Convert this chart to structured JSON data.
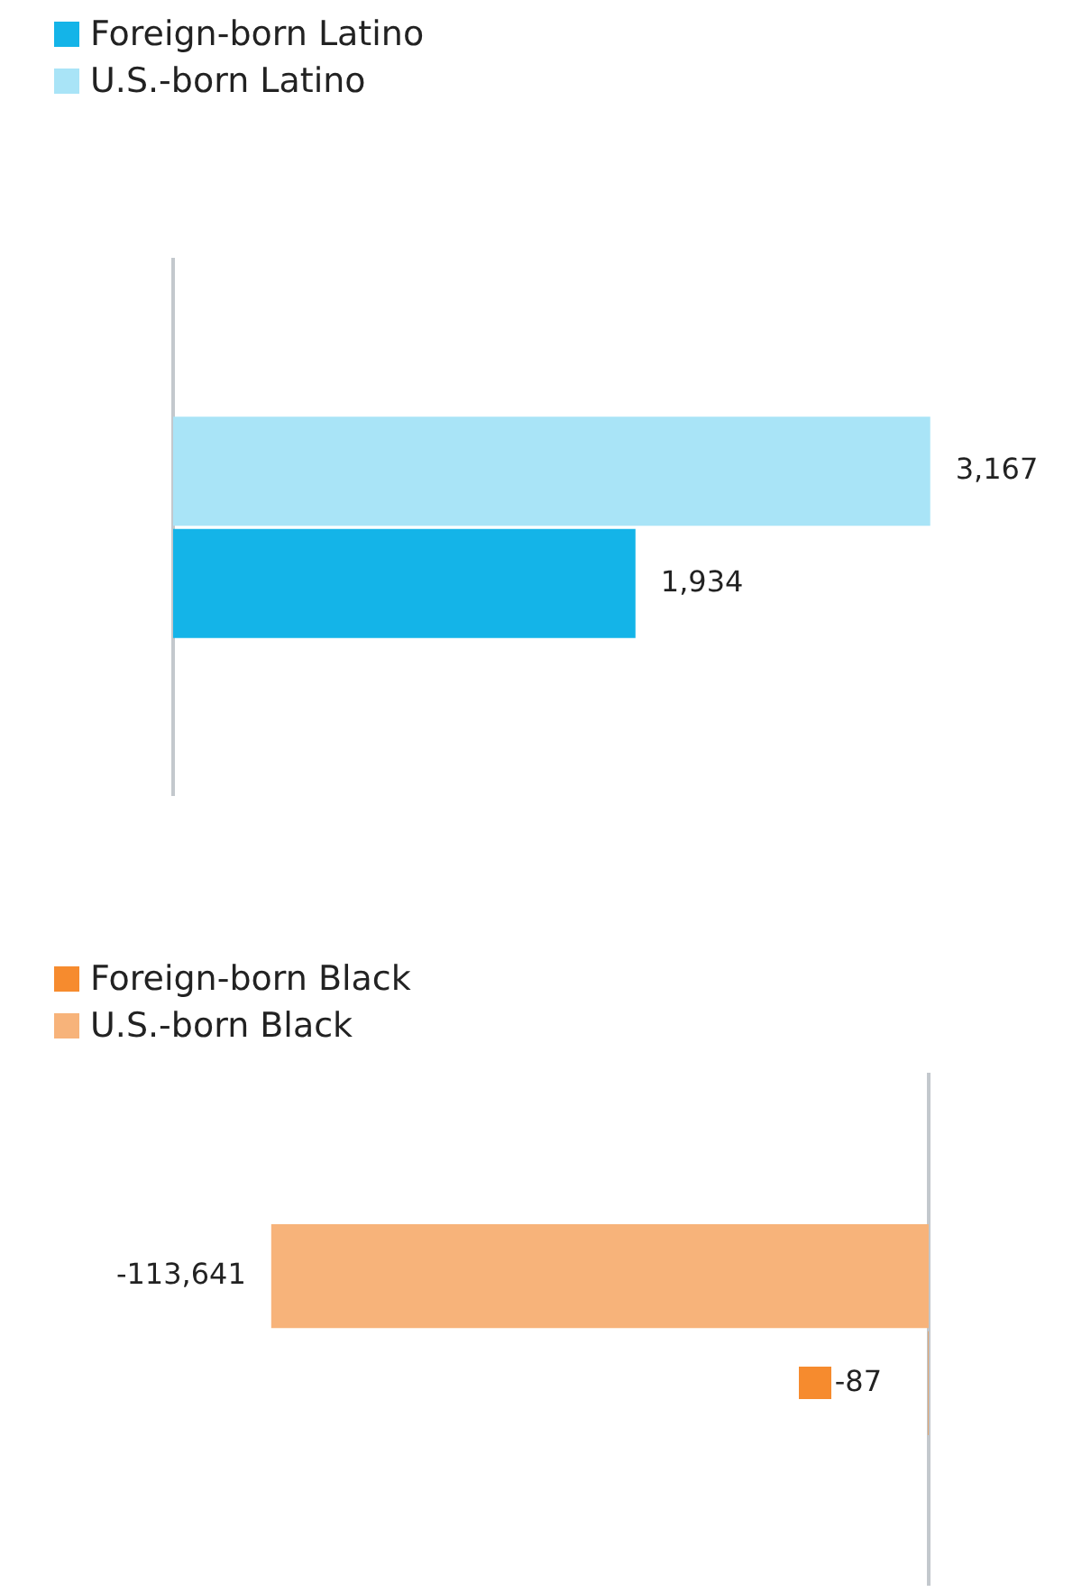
{
  "chart_data": [
    {
      "type": "bar",
      "orientation": "horizontal",
      "categories": [
        null
      ],
      "tick_labels": false,
      "grid": false,
      "legend": "top left",
      "series": [
        {
          "name": "U.S.-born Latino",
          "color": "#a9e4f7",
          "values": [
            3167
          ],
          "value_labels": [
            "3,167"
          ]
        },
        {
          "name": "Foreign-born Latino",
          "color": "#14b4e8",
          "values": [
            1934
          ],
          "value_labels": [
            "1,934"
          ]
        }
      ]
    },
    {
      "type": "bar",
      "orientation": "horizontal",
      "categories": [
        null
      ],
      "tick_labels": false,
      "grid": false,
      "legend": "top left",
      "series": [
        {
          "name": "U.S.-born Black",
          "color": "#f7b37a",
          "values": [
            -113641
          ],
          "value_labels": [
            "-113,641"
          ]
        },
        {
          "name": "Foreign-born Black",
          "color": "#f68b2e",
          "values": [
            -87
          ],
          "value_labels": [
            "-87"
          ]
        }
      ]
    }
  ]
}
